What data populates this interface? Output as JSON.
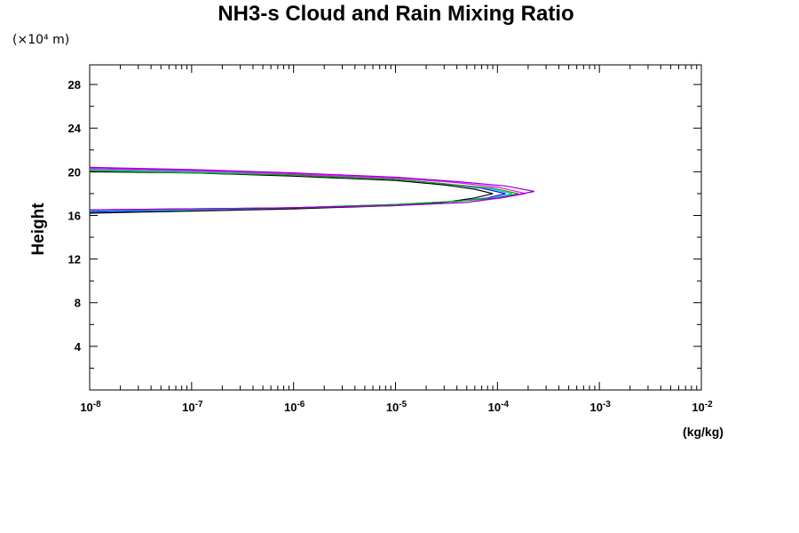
{
  "chart_data": {
    "type": "line",
    "title": "NH3-s Cloud and Rain Mixing Ratio",
    "y_unit_label": "(×10⁴ m)",
    "ylabel": "Height",
    "xlabel": "(kg/kg)",
    "x_scale": "log",
    "xlim": [
      1e-08,
      0.01
    ],
    "ylim": [
      0,
      29.8
    ],
    "x_tick_labels": [
      {
        "value": 1e-08,
        "base": "10",
        "exp": "-8"
      },
      {
        "value": 1e-07,
        "base": "10",
        "exp": "-7"
      },
      {
        "value": 1e-06,
        "base": "10",
        "exp": "-6"
      },
      {
        "value": 1e-05,
        "base": "10",
        "exp": "-5"
      },
      {
        "value": 0.0001,
        "base": "10",
        "exp": "-4"
      },
      {
        "value": 0.001,
        "base": "10",
        "exp": "-3"
      },
      {
        "value": 0.01,
        "base": "10",
        "exp": "-2"
      }
    ],
    "y_ticks": [
      4,
      8,
      12,
      16,
      20,
      24,
      28
    ],
    "grid": false,
    "legend": "none",
    "series": [
      {
        "color": "#000000",
        "points": [
          [
            1e-08,
            16.2
          ],
          [
            1e-07,
            16.4
          ],
          [
            1e-06,
            16.6
          ],
          [
            1e-05,
            16.9
          ],
          [
            3e-05,
            17.2
          ],
          [
            6e-05,
            17.6
          ],
          [
            9e-05,
            18.0
          ],
          [
            6e-05,
            18.4
          ],
          [
            3e-05,
            18.8
          ],
          [
            1e-05,
            19.2
          ],
          [
            1e-06,
            19.6
          ],
          [
            1e-07,
            19.9
          ],
          [
            1e-08,
            20.0
          ]
        ]
      },
      {
        "color": "#0000ff",
        "points": [
          [
            1e-08,
            16.3
          ],
          [
            1e-07,
            16.5
          ],
          [
            1e-06,
            16.7
          ],
          [
            1e-05,
            17.0
          ],
          [
            4e-05,
            17.3
          ],
          [
            8e-05,
            17.6
          ],
          [
            0.00012,
            18.0
          ],
          [
            7e-05,
            18.5
          ],
          [
            3e-05,
            18.9
          ],
          [
            1e-05,
            19.3
          ],
          [
            1e-06,
            19.8
          ],
          [
            1e-07,
            20.1
          ],
          [
            1e-08,
            20.3
          ]
        ]
      },
      {
        "color": "#00c8c8",
        "points": [
          [
            1e-08,
            16.4
          ],
          [
            1e-07,
            16.5
          ],
          [
            1e-06,
            16.7
          ],
          [
            1e-05,
            17.0
          ],
          [
            4e-05,
            17.3
          ],
          [
            9e-05,
            17.6
          ],
          [
            0.00014,
            18.0
          ],
          [
            8e-05,
            18.5
          ],
          [
            3e-05,
            18.9
          ],
          [
            1e-05,
            19.3
          ],
          [
            1e-06,
            19.8
          ],
          [
            1e-07,
            20.0
          ],
          [
            1e-08,
            20.2
          ]
        ]
      },
      {
        "color": "#00aa00",
        "points": [
          [
            1e-08,
            16.5
          ],
          [
            1e-07,
            16.6
          ],
          [
            1e-06,
            16.7
          ],
          [
            1e-05,
            17.0
          ],
          [
            4e-05,
            17.3
          ],
          [
            0.0001,
            17.6
          ],
          [
            0.00016,
            18.0
          ],
          [
            9e-05,
            18.5
          ],
          [
            3e-05,
            18.9
          ],
          [
            1e-05,
            19.3
          ],
          [
            1e-06,
            19.7
          ],
          [
            1e-07,
            19.9
          ],
          [
            1e-08,
            20.1
          ]
        ]
      },
      {
        "color": "#ff00ff",
        "points": [
          [
            1e-08,
            16.5
          ],
          [
            1e-07,
            16.6
          ],
          [
            1e-06,
            16.7
          ],
          [
            1e-05,
            16.9
          ],
          [
            5e-05,
            17.2
          ],
          [
            0.00011,
            17.6
          ],
          [
            0.00019,
            18.0
          ],
          [
            0.0001,
            18.6
          ],
          [
            4e-05,
            19.0
          ],
          [
            1e-05,
            19.4
          ],
          [
            1e-06,
            19.8
          ],
          [
            1e-07,
            20.1
          ],
          [
            1e-08,
            20.3
          ]
        ]
      },
      {
        "color": "#9400d3",
        "points": [
          [
            1e-08,
            16.5
          ],
          [
            1e-07,
            16.6
          ],
          [
            1e-06,
            16.7
          ],
          [
            1e-05,
            16.9
          ],
          [
            5e-05,
            17.2
          ],
          [
            0.00012,
            17.7
          ],
          [
            0.00023,
            18.2
          ],
          [
            0.00012,
            18.7
          ],
          [
            4e-05,
            19.1
          ],
          [
            1e-05,
            19.5
          ],
          [
            1e-06,
            19.9
          ],
          [
            1e-07,
            20.2
          ],
          [
            1e-08,
            20.4
          ]
        ]
      }
    ]
  }
}
